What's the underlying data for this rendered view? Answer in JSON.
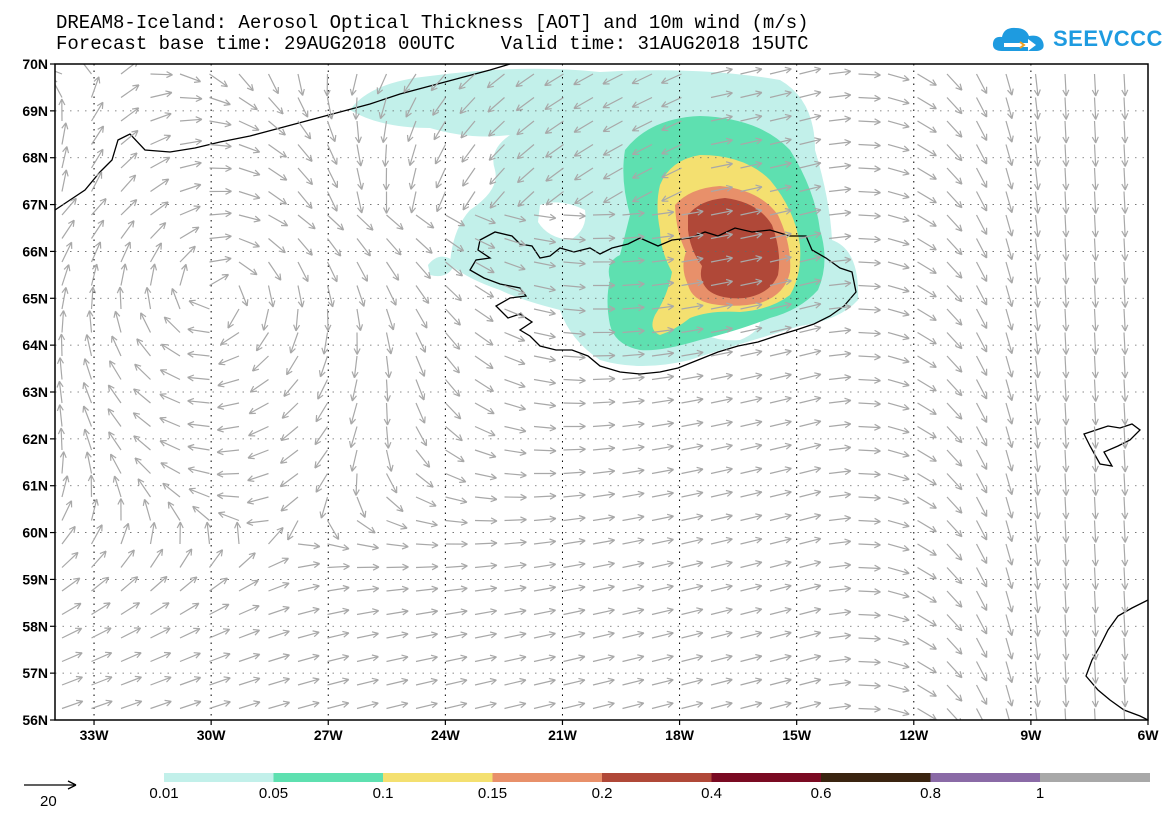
{
  "header": {
    "title_line1": "DREAM8-Iceland: Aerosol Optical Thickness [AOT] and 10m wind (m/s)",
    "title_line2": "Forecast base time: 29AUG2018 00UTC    Valid time: 31AUG2018 15UTC"
  },
  "logo": {
    "text": "SEEVCCC",
    "color": "#1e9be0"
  },
  "map": {
    "lon_labels": [
      "33W",
      "30W",
      "27W",
      "24W",
      "21W",
      "18W",
      "15W",
      "12W",
      "9W",
      "6W"
    ],
    "lat_labels": [
      "70N",
      "69N",
      "68N",
      "67N",
      "66N",
      "65N",
      "64N",
      "63N",
      "62N",
      "61N",
      "60N",
      "59N",
      "58N",
      "57N",
      "56N"
    ],
    "lon_range": [
      -34,
      -6
    ],
    "lat_range": [
      56,
      70
    ],
    "vector_color": "#a8a8a8",
    "coastline_color": "#000000",
    "gridline_style": "dotted"
  },
  "wind_reference": {
    "value": "20"
  },
  "colorbar": {
    "labels": [
      "0.01",
      "0.05",
      "0.1",
      "0.15",
      "0.2",
      "0.4",
      "0.6",
      "0.8",
      "1"
    ],
    "colors": [
      "#c2f0ea",
      "#5ee0b0",
      "#f4e070",
      "#e8906a",
      "#b04838",
      "#7a0a22",
      "#3a2410",
      "#8a6aa6",
      "#a8a8a8"
    ]
  }
}
